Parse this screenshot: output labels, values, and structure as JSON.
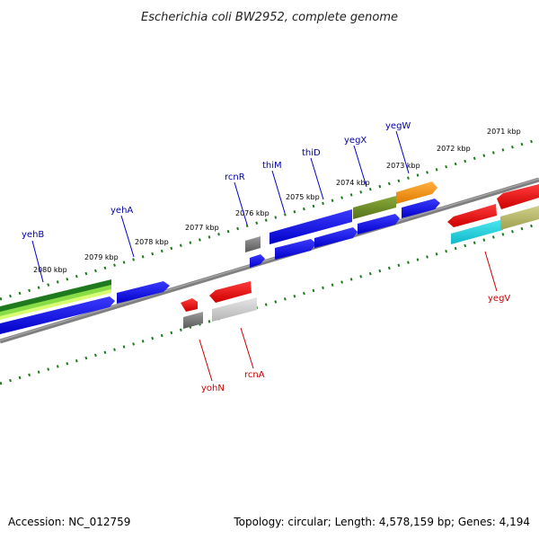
{
  "title": "Escherichia coli BW2952, complete genome",
  "footer": {
    "accession": "Accession: NC_012759",
    "stats": "Topology: circular; Length: 4,578,159 bp; Genes: 4,194"
  },
  "ticks": {
    "labels": [
      "2080 kbp",
      "2079 kbp",
      "2078 kbp",
      "2077 kbp",
      "2076 kbp",
      "2075 kbp",
      "2074 kbp",
      "2073 kbp",
      "2072 kbp",
      "2071 kbp"
    ]
  },
  "genes": {
    "forward": [
      "yehB",
      "yehA",
      "rcnR",
      "thiM",
      "thiD",
      "yegX",
      "yegW"
    ],
    "reverse": [
      "yohN",
      "rcnA",
      "yegV"
    ]
  },
  "colors": {
    "forward_strand": "#0000ee",
    "reverse_strand": "#ee0000",
    "tick": "#1a7a1a",
    "backbone": "#808080"
  }
}
